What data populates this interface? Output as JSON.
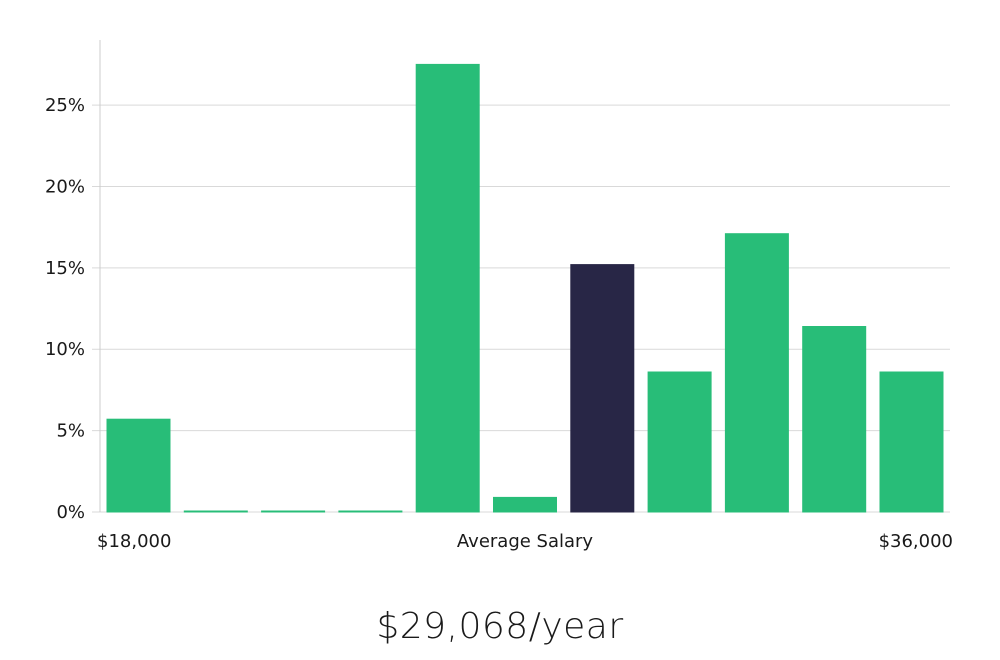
{
  "chart_data": {
    "type": "bar",
    "title": "",
    "xlabel": "Average Salary",
    "ylabel": "",
    "x_min_label": "$18,000",
    "x_max_label": "$36,000",
    "ylim": [
      0,
      29
    ],
    "yticks": [
      0,
      5,
      10,
      15,
      20,
      25
    ],
    "ytick_labels": [
      "0%",
      "5%",
      "10%",
      "15%",
      "20%",
      "25%"
    ],
    "bins": [
      {
        "value": 5.7,
        "highlight": false
      },
      {
        "value": 0.05,
        "highlight": false
      },
      {
        "value": 0.05,
        "highlight": false
      },
      {
        "value": 0.05,
        "highlight": false
      },
      {
        "value": 27.5,
        "highlight": false
      },
      {
        "value": 0.9,
        "highlight": false
      },
      {
        "value": 15.2,
        "highlight": true
      },
      {
        "value": 8.6,
        "highlight": false
      },
      {
        "value": 17.1,
        "highlight": false
      },
      {
        "value": 11.4,
        "highlight": false
      },
      {
        "value": 8.6,
        "highlight": false
      }
    ],
    "grid": true
  },
  "colors": {
    "bar": "#28bd78",
    "bar_highlight": "#282646",
    "grid": "#d9d9d9",
    "axis": "#cccccc"
  },
  "summary": {
    "salary_text": "$29,068/year"
  }
}
